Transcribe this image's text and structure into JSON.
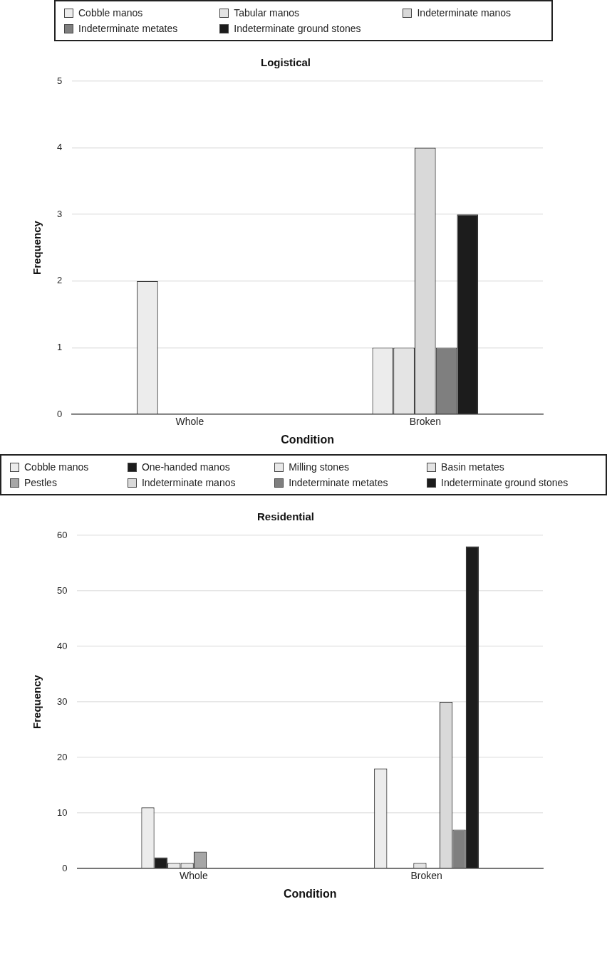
{
  "chart_data": [
    {
      "type": "bar",
      "title": "Logistical",
      "xlabel": "Condition",
      "ylabel": "Frequency",
      "categories": [
        "Whole",
        "Broken"
      ],
      "ylim": [
        0,
        5
      ],
      "yticks": [
        0,
        1,
        2,
        3,
        4,
        5
      ],
      "grid": "y",
      "legend": "top",
      "series": [
        {
          "name": "Cobble manos",
          "color": "#ececec",
          "values": [
            2,
            1
          ]
        },
        {
          "name": "Tabular manos",
          "color": "#e4e4e4",
          "values": [
            0,
            1
          ]
        },
        {
          "name": "Indeterminate manos",
          "color": "#d9d9d9",
          "values": [
            0,
            4
          ]
        },
        {
          "name": "Indeterminate metates",
          "color": "#7f7f7f",
          "values": [
            0,
            1
          ]
        },
        {
          "name": "Indeterminate ground stones",
          "color": "#1c1c1c",
          "values": [
            0,
            3
          ]
        }
      ]
    },
    {
      "type": "bar",
      "title": "Residential",
      "xlabel": "Condition",
      "ylabel": "Frequency",
      "categories": [
        "Whole",
        "Broken"
      ],
      "ylim": [
        0,
        60
      ],
      "yticks": [
        0,
        10,
        20,
        30,
        40,
        50,
        60
      ],
      "grid": "y",
      "legend": "top",
      "series": [
        {
          "name": "Cobble manos",
          "color": "#ececec",
          "values": [
            11,
            18
          ]
        },
        {
          "name": "One-handed manos",
          "color": "#1c1c1c",
          "values": [
            2,
            0
          ]
        },
        {
          "name": "Milling stones",
          "color": "#e8e8e8",
          "values": [
            1,
            0
          ]
        },
        {
          "name": "Basin metates",
          "color": "#e4e4e4",
          "values": [
            1,
            1
          ]
        },
        {
          "name": "Pestles",
          "color": "#a6a6a6",
          "values": [
            3,
            0
          ]
        },
        {
          "name": "Indeterminate manos",
          "color": "#d9d9d9",
          "values": [
            0,
            30
          ]
        },
        {
          "name": "Indeterminate metates",
          "color": "#7f7f7f",
          "values": [
            0,
            7
          ]
        },
        {
          "name": "Indeterminate ground stones",
          "color": "#1c1c1c",
          "values": [
            0,
            58
          ]
        }
      ]
    }
  ]
}
